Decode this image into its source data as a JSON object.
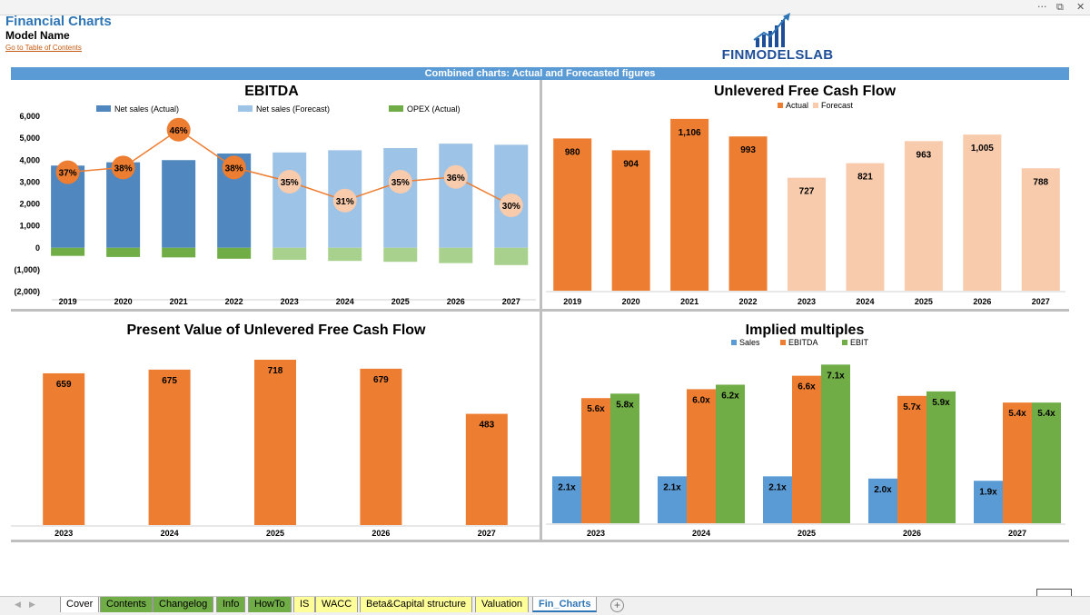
{
  "header": {
    "title": "Financial Charts",
    "model_name": "Model Name",
    "toc_link": "Go to Table of Contents",
    "logo": "FINMODELSLAB",
    "banner": "Combined charts: Actual and Forecasted figures"
  },
  "window_controls": [
    "···",
    "⧉",
    "✕"
  ],
  "colors": {
    "actual_blue": "#4f87be",
    "forecast_blue": "#9dc3e6",
    "green": "#70ad47",
    "light_green": "#a9d18e",
    "orange": "#ed7d31",
    "peach": "#f8cbad",
    "sales_blue": "#5b9bd5",
    "banner": "#5b9bd5"
  },
  "sheet_tabs": [
    {
      "label": "Cover",
      "color": "#ffffff",
      "active": false
    },
    {
      "label": "Contents",
      "color": "#70ad47",
      "active": false
    },
    {
      "label": "Changelog",
      "color": "#70ad47",
      "active": false
    },
    {
      "label": "Info",
      "color": "#70ad47",
      "active": false
    },
    {
      "label": "HowTo",
      "color": "#70ad47",
      "active": false
    },
    {
      "label": "IS",
      "color": "#ffff99",
      "active": false
    },
    {
      "label": "WACC",
      "color": "#ffff99",
      "active": false
    },
    {
      "label": "Beta&Capital structure",
      "color": "#ffff99",
      "active": false
    },
    {
      "label": "Valuation",
      "color": "#ffff99",
      "active": false
    },
    {
      "label": "Fin_Charts",
      "color": "#ffffff",
      "active": true
    }
  ],
  "chart_data": [
    {
      "type": "bar",
      "title": "EBITDA",
      "categories": [
        "2019",
        "2020",
        "2021",
        "2022",
        "2023",
        "2024",
        "2025",
        "2026",
        "2027"
      ],
      "ylim": [
        -2000,
        6000
      ],
      "yticks": [
        "6,000",
        "5,000",
        "4,000",
        "3,000",
        "2,000",
        "1,000",
        "0",
        "(1,000)",
        "(2,000)"
      ],
      "series": [
        {
          "name": "Net sales (Actual)",
          "values": [
            3750,
            3900,
            4000,
            4300,
            null,
            null,
            null,
            null,
            null
          ]
        },
        {
          "name": "Net sales (Forecast)",
          "values": [
            null,
            null,
            null,
            null,
            4350,
            4450,
            4550,
            4750,
            4700
          ]
        },
        {
          "name": "OPEX (Actual)",
          "values": [
            -370,
            -420,
            -440,
            -500,
            -550,
            -600,
            -640,
            -700,
            -790
          ]
        }
      ],
      "margin_labels": [
        "37%",
        "38%",
        "46%",
        "38%",
        "35%",
        "31%",
        "35%",
        "36%",
        "30%"
      ],
      "margin_values": [
        37,
        38,
        46,
        38,
        35,
        31,
        35,
        36,
        30
      ],
      "legend": "top"
    },
    {
      "type": "bar",
      "title": "Unlevered Free Cash Flow",
      "categories": [
        "2019",
        "2020",
        "2021",
        "2022",
        "2023",
        "2024",
        "2025",
        "2026",
        "2027"
      ],
      "series": [
        {
          "name": "Actual"
        },
        {
          "name": "Forecast"
        }
      ],
      "values": [
        980,
        904,
        1106,
        993,
        727,
        821,
        963,
        1005,
        788
      ],
      "labels": [
        "980",
        "904",
        "1,106",
        "993",
        "727",
        "821",
        "963",
        "1,005",
        "788"
      ],
      "forecast_from_index": 4,
      "legend": "top"
    },
    {
      "type": "bar",
      "title": "Present Value of Unlevered Free Cash Flow",
      "categories": [
        "2023",
        "2024",
        "2025",
        "2026",
        "2027"
      ],
      "values": [
        659,
        675,
        718,
        679,
        483
      ],
      "labels": [
        "659",
        "675",
        "718",
        "679",
        "483"
      ]
    },
    {
      "type": "bar",
      "title": "Implied multiples",
      "categories": [
        "2023",
        "2024",
        "2025",
        "2026",
        "2027"
      ],
      "series": [
        {
          "name": "Sales",
          "values": [
            2.1,
            2.1,
            2.1,
            2.0,
            1.9
          ],
          "labels": [
            "2.1x",
            "2.1x",
            "2.1x",
            "2.0x",
            "1.9x"
          ]
        },
        {
          "name": "EBITDA",
          "values": [
            5.6,
            6.0,
            6.6,
            5.7,
            5.4
          ],
          "labels": [
            "5.6x",
            "6.0x",
            "6.6x",
            "5.7x",
            "5.4x"
          ]
        },
        {
          "name": "EBIT",
          "values": [
            5.8,
            6.2,
            7.1,
            5.9,
            5.4
          ],
          "labels": [
            "5.8x",
            "6.2x",
            "7.1x",
            "5.9x",
            "5.4x"
          ]
        }
      ],
      "legend": "top"
    }
  ]
}
